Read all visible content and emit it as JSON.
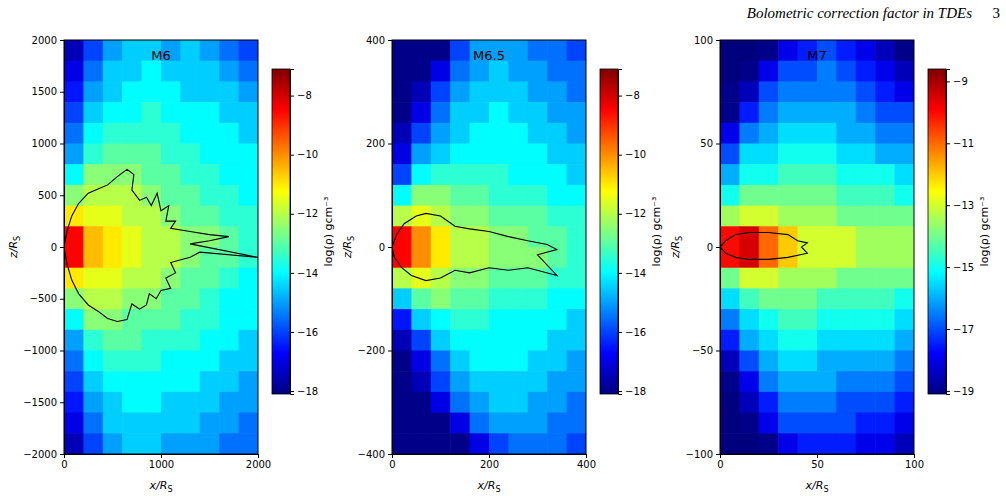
{
  "header": {
    "running_title": "Bolometric correction factor in TDEs",
    "page": "3"
  },
  "chart_data": [
    {
      "type": "heatmap",
      "title": "M6",
      "xlabel": "x/R",
      "xlabel_sub": "S",
      "ylabel": "z/R",
      "ylabel_sub": "S",
      "xlim": [
        0,
        2000
      ],
      "ylim": [
        -2000,
        2000
      ],
      "xticks": [
        0,
        1000,
        2000
      ],
      "yticks": [
        {
          "value": -2000,
          "label": "−2000"
        },
        {
          "value": -1500,
          "label": "−1500"
        },
        {
          "value": -1000,
          "label": "−1000"
        },
        {
          "value": -500,
          "label": "−500"
        },
        0,
        500,
        1000,
        1500,
        2000
      ],
      "colorbar": {
        "label": "log(ρ) gcm⁻³",
        "range": [
          -18.1,
          -7.1
        ],
        "ticks": [
          {
            "value": -18,
            "label": "−18"
          },
          {
            "value": -16,
            "label": "−16"
          },
          {
            "value": -14,
            "label": "−14"
          },
          {
            "value": -12,
            "label": "−12"
          },
          {
            "value": -10,
            "label": "−10"
          },
          {
            "value": -8,
            "label": "−8"
          }
        ]
      },
      "x_edges": [
        0,
        200,
        400,
        600,
        800,
        1000,
        1200,
        1400,
        1600,
        1800,
        2000
      ],
      "z_edges": [
        2000,
        1800,
        1600,
        1400,
        1200,
        1000,
        800,
        600,
        400,
        200,
        0,
        -200,
        -400,
        -600,
        -800,
        -1000,
        -1200,
        -1400,
        -1600,
        -1800,
        -2000
      ],
      "cells": [
        [
          -17.5,
          -16,
          -15,
          -14.5,
          -14.5,
          -15,
          -14.5,
          -15,
          -15.5,
          -16
        ],
        [
          -17,
          -15.5,
          -14.5,
          -14.5,
          -14,
          -14.5,
          -14.5,
          -14.5,
          -15,
          -15.5
        ],
        [
          -16.5,
          -15,
          -14.5,
          -14,
          -14,
          -14,
          -14.5,
          -14.5,
          -14.5,
          -15
        ],
        [
          -16,
          -14.5,
          -14,
          -14,
          -13.5,
          -14,
          -14,
          -14,
          -14.5,
          -14.5
        ],
        [
          -15.5,
          -14,
          -13.5,
          -13.5,
          -13.5,
          -13.5,
          -14,
          -14,
          -14,
          -14.5
        ],
        [
          -15,
          -13.5,
          -13,
          -13,
          -13,
          -13.5,
          -13.5,
          -14,
          -14,
          -14
        ],
        [
          -14,
          -12.5,
          -12.5,
          -12.5,
          -13,
          -13,
          -13.5,
          -13.5,
          -14,
          -14
        ],
        [
          -12.5,
          -12,
          -12,
          -12,
          -12.5,
          -13,
          -13,
          -13.5,
          -13.5,
          -14
        ],
        [
          -11,
          -11.5,
          -11.5,
          -12,
          -12,
          -12.5,
          -13,
          -13,
          -13.5,
          -13.5
        ],
        [
          -8.5,
          -10.5,
          -11,
          -11.5,
          -12,
          -12,
          -12.5,
          -12.5,
          -13,
          -13.5
        ],
        [
          -8.5,
          -10.5,
          -11,
          -11.5,
          -12,
          -12,
          -12.5,
          -13,
          -13,
          -13.5
        ],
        [
          -11,
          -11.5,
          -11.5,
          -12,
          -12,
          -12.5,
          -13,
          -13,
          -13.5,
          -14
        ],
        [
          -12.5,
          -12,
          -12,
          -12.5,
          -12.5,
          -13,
          -13,
          -13.5,
          -14,
          -14
        ],
        [
          -14,
          -12.5,
          -12.5,
          -13,
          -13,
          -13,
          -13.5,
          -13.5,
          -14,
          -14
        ],
        [
          -15,
          -13.5,
          -13,
          -13,
          -13.5,
          -13.5,
          -13.5,
          -14,
          -14,
          -14.5
        ],
        [
          -15.5,
          -14,
          -13.5,
          -13.5,
          -13.5,
          -14,
          -14,
          -14,
          -14.5,
          -14.5
        ],
        [
          -16,
          -14.5,
          -14,
          -14,
          -14,
          -14,
          -14,
          -14.5,
          -14.5,
          -15
        ],
        [
          -16.5,
          -15,
          -14.5,
          -14,
          -14,
          -14.5,
          -14.5,
          -14.5,
          -15,
          -15
        ],
        [
          -17,
          -15.5,
          -14.5,
          -14.5,
          -14.5,
          -14.5,
          -14.5,
          -15,
          -15,
          -15.5
        ],
        [
          -17.5,
          -16,
          -15,
          -14.5,
          -14.5,
          -15,
          -15,
          -15,
          -15.5,
          -15.5
        ]
      ],
      "contour": {
        "x": [
          0,
          30,
          80,
          150,
          250,
          350,
          450,
          550,
          650,
          720,
          700,
          780,
          850,
          900,
          960,
          1000,
          1080,
          1050,
          1150,
          1100,
          1300,
          1500,
          1700,
          1500,
          1300,
          2000,
          1400,
          1300,
          1100,
          1150,
          1050,
          1100,
          1000,
          950,
          880,
          850,
          780,
          700,
          650,
          550,
          450,
          350,
          250,
          150,
          80,
          30,
          0
        ],
        "z": [
          0,
          150,
          300,
          420,
          520,
          560,
          600,
          680,
          750,
          700,
          550,
          450,
          480,
          400,
          520,
          350,
          400,
          250,
          250,
          180,
          150,
          120,
          100,
          60,
          30,
          -100,
          -50,
          -100,
          -150,
          -250,
          -300,
          -400,
          -420,
          -500,
          -450,
          -560,
          -600,
          -550,
          -700,
          -720,
          -690,
          -620,
          -560,
          -450,
          -320,
          -160,
          0
        ]
      }
    },
    {
      "type": "heatmap",
      "title": "M6.5",
      "xlabel": "x/R",
      "xlabel_sub": "S",
      "ylabel": "z/R",
      "ylabel_sub": "S",
      "xlim": [
        0,
        400
      ],
      "ylim": [
        -400,
        400
      ],
      "xticks": [
        0,
        200,
        400
      ],
      "yticks": [
        {
          "value": -400,
          "label": "−400"
        },
        {
          "value": -200,
          "label": "−200"
        },
        0,
        200,
        400
      ],
      "colorbar": {
        "label": "log(ρ) gcm⁻³",
        "range": [
          -18.1,
          -7.1
        ],
        "ticks": [
          {
            "value": -18,
            "label": "−18"
          },
          {
            "value": -16,
            "label": "−16"
          },
          {
            "value": -14,
            "label": "−14"
          },
          {
            "value": -12,
            "label": "−12"
          },
          {
            "value": -10,
            "label": "−10"
          },
          {
            "value": -8,
            "label": "−8"
          }
        ]
      },
      "x_edges": [
        0,
        40,
        80,
        120,
        160,
        200,
        240,
        280,
        320,
        360,
        400
      ],
      "z_edges": [
        400,
        360,
        320,
        280,
        240,
        200,
        160,
        120,
        80,
        40,
        0,
        -40,
        -80,
        -120,
        -160,
        -200,
        -240,
        -280,
        -320,
        -360,
        -400
      ],
      "cells": [
        [
          -18,
          -18,
          -18,
          -16,
          -15,
          -15,
          -15,
          -15.5,
          -15.5,
          -16
        ],
        [
          -18,
          -18,
          -17,
          -15.5,
          -15,
          -14.5,
          -15,
          -15,
          -15.5,
          -15.5
        ],
        [
          -18,
          -17.5,
          -16,
          -15,
          -14.5,
          -14.5,
          -14.5,
          -15,
          -15,
          -15.5
        ],
        [
          -18,
          -17,
          -15.5,
          -14.5,
          -14.5,
          -14,
          -14.5,
          -14.5,
          -15,
          -15
        ],
        [
          -17.5,
          -16,
          -15,
          -14.5,
          -14,
          -14,
          -14,
          -14.5,
          -14.5,
          -15
        ],
        [
          -17,
          -15,
          -14.5,
          -14,
          -14,
          -14,
          -14,
          -14,
          -14.5,
          -14.5
        ],
        [
          -16,
          -14,
          -13.5,
          -13.5,
          -13.5,
          -13.5,
          -14,
          -14,
          -14,
          -14.5
        ],
        [
          -14,
          -12.5,
          -12.5,
          -13,
          -13,
          -13.5,
          -13.5,
          -13.5,
          -14,
          -14
        ],
        [
          -12,
          -11.5,
          -12,
          -12.5,
          -12.5,
          -13,
          -13,
          -13,
          -13.5,
          -13.5
        ],
        [
          -8.5,
          -10,
          -11,
          -12,
          -12,
          -12.5,
          -12.5,
          -13,
          -13,
          -13.5
        ],
        [
          -8.5,
          -10,
          -11,
          -12,
          -12,
          -12.5,
          -12.5,
          -12.5,
          -13,
          -13.5
        ],
        [
          -12,
          -11.5,
          -12,
          -12.5,
          -12.5,
          -13,
          -13,
          -13,
          -13.5,
          -13.5
        ],
        [
          -14.5,
          -13,
          -12.5,
          -13,
          -13,
          -13.5,
          -13.5,
          -13.5,
          -14,
          -14
        ],
        [
          -16.5,
          -14.5,
          -14,
          -13.5,
          -13.5,
          -14,
          -14,
          -14,
          -14,
          -14.5
        ],
        [
          -17.5,
          -16,
          -14.5,
          -14,
          -14,
          -14,
          -14,
          -14,
          -14.5,
          -14.5
        ],
        [
          -18,
          -17,
          -15.5,
          -14.5,
          -14,
          -14,
          -14,
          -14.5,
          -14.5,
          -15
        ],
        [
          -18,
          -17.5,
          -16,
          -15,
          -14.5,
          -14.5,
          -14.5,
          -14.5,
          -15,
          -15
        ],
        [
          -18,
          -18,
          -17,
          -15.5,
          -15,
          -14.5,
          -14.5,
          -15,
          -15,
          -15.5
        ],
        [
          -18,
          -18,
          -18,
          -17,
          -15.5,
          -15,
          -15,
          -15,
          -15.5,
          -15.5
        ],
        [
          -18,
          -18,
          -18,
          -18,
          -17,
          -16,
          -15.5,
          -15.5,
          -15.5,
          -16
        ]
      ],
      "contour": {
        "x": [
          0,
          10,
          25,
          50,
          70,
          100,
          130,
          160,
          200,
          240,
          280,
          320,
          340,
          300,
          340,
          280,
          240,
          200,
          160,
          130,
          100,
          70,
          40,
          20,
          5,
          0
        ],
        "z": [
          0,
          25,
          45,
          60,
          65,
          60,
          40,
          35,
          30,
          20,
          12,
          5,
          -5,
          -15,
          -55,
          -40,
          -45,
          -40,
          -50,
          -45,
          -60,
          -65,
          -55,
          -40,
          -20,
          0
        ]
      }
    },
    {
      "type": "heatmap",
      "title": "M7",
      "xlabel": "x/R",
      "xlabel_sub": "S",
      "ylabel": "z/R",
      "ylabel_sub": "S",
      "xlim": [
        0,
        100
      ],
      "ylim": [
        -100,
        100
      ],
      "xticks": [
        0,
        50,
        100
      ],
      "yticks": [
        {
          "value": -100,
          "label": "−100"
        },
        {
          "value": -50,
          "label": "−50"
        },
        0,
        50,
        100
      ],
      "colorbar": {
        "label": "log(ρ) gcm⁻³",
        "range": [
          -19.1,
          -8.6
        ],
        "ticks": [
          {
            "value": -19,
            "label": "−19"
          },
          {
            "value": -17,
            "label": "−17"
          },
          {
            "value": -15,
            "label": "−15"
          },
          {
            "value": -13,
            "label": "−13"
          },
          {
            "value": -11,
            "label": "−11"
          },
          {
            "value": -9,
            "label": "−9"
          }
        ]
      },
      "x_edges": [
        0,
        10,
        20,
        30,
        40,
        50,
        60,
        70,
        80,
        90,
        100
      ],
      "z_edges": [
        100,
        90,
        80,
        70,
        60,
        50,
        40,
        30,
        20,
        10,
        0,
        -10,
        -20,
        -30,
        -40,
        -50,
        -60,
        -70,
        -80,
        -90,
        -100
      ],
      "cells": [
        [
          -19.5,
          -19.5,
          -19,
          -18,
          -17.5,
          -17,
          -17.5,
          -18,
          -18.5,
          -19
        ],
        [
          -19.5,
          -19,
          -18,
          -17,
          -17,
          -16.5,
          -17,
          -17.5,
          -18,
          -18.5
        ],
        [
          -19,
          -18.5,
          -17,
          -16.5,
          -16.5,
          -16.5,
          -16.5,
          -17,
          -17.5,
          -18
        ],
        [
          -19,
          -17.5,
          -16.5,
          -16,
          -16,
          -16,
          -16,
          -16.5,
          -17,
          -17
        ],
        [
          -18,
          -16.5,
          -16,
          -15.5,
          -15.5,
          -15.5,
          -16,
          -16,
          -16.5,
          -16.5
        ],
        [
          -17,
          -15.5,
          -15.5,
          -15,
          -15,
          -15,
          -15.5,
          -15.5,
          -16,
          -16
        ],
        [
          -16,
          -15,
          -15,
          -14.5,
          -14.5,
          -14.5,
          -15,
          -15,
          -15,
          -15.5
        ],
        [
          -15,
          -14,
          -14,
          -14,
          -14,
          -14,
          -14.5,
          -14.5,
          -14.5,
          -15
        ],
        [
          -13.5,
          -13,
          -13,
          -13.5,
          -13.5,
          -13.5,
          -14,
          -14,
          -14,
          -14
        ],
        [
          -10,
          -9.5,
          -11,
          -12,
          -13,
          -13,
          -13,
          -13.5,
          -13.5,
          -13.5
        ],
        [
          -10,
          -9.5,
          -11,
          -12,
          -13,
          -13,
          -13,
          -13.5,
          -13.5,
          -13.5
        ],
        [
          -14,
          -13,
          -13,
          -13.5,
          -13.5,
          -13.5,
          -14,
          -14,
          -14,
          -14
        ],
        [
          -15.5,
          -14.5,
          -14,
          -14,
          -14,
          -14.5,
          -14.5,
          -14.5,
          -14.5,
          -15
        ],
        [
          -16.5,
          -15.5,
          -15,
          -14.5,
          -14.5,
          -15,
          -15,
          -15,
          -15,
          -15.5
        ],
        [
          -17.5,
          -16,
          -15.5,
          -15,
          -15,
          -15.5,
          -15.5,
          -15.5,
          -15.5,
          -16
        ],
        [
          -18.5,
          -17,
          -16,
          -15.5,
          -15.5,
          -16,
          -16,
          -16,
          -16,
          -16.5
        ],
        [
          -19,
          -18,
          -16.5,
          -16,
          -16,
          -16,
          -16.5,
          -16.5,
          -16.5,
          -17
        ],
        [
          -19.5,
          -18.5,
          -17.5,
          -16.5,
          -16.5,
          -16.5,
          -17,
          -17,
          -17,
          -17.5
        ],
        [
          -19.5,
          -19,
          -18,
          -17,
          -17,
          -17,
          -17,
          -17.5,
          -17.5,
          -18
        ],
        [
          -19.5,
          -19.5,
          -19,
          -18,
          -17.5,
          -17.5,
          -17.5,
          -18,
          -18,
          -18.5
        ]
      ],
      "contour": {
        "x": [
          0,
          3,
          8,
          15,
          25,
          35,
          40,
          45,
          42,
          45,
          35,
          25,
          15,
          8,
          3,
          0
        ],
        "z": [
          0,
          3,
          6,
          7,
          7,
          6,
          3,
          2,
          0,
          -3,
          -5,
          -6,
          -6,
          -5,
          -3,
          0
        ]
      }
    }
  ]
}
